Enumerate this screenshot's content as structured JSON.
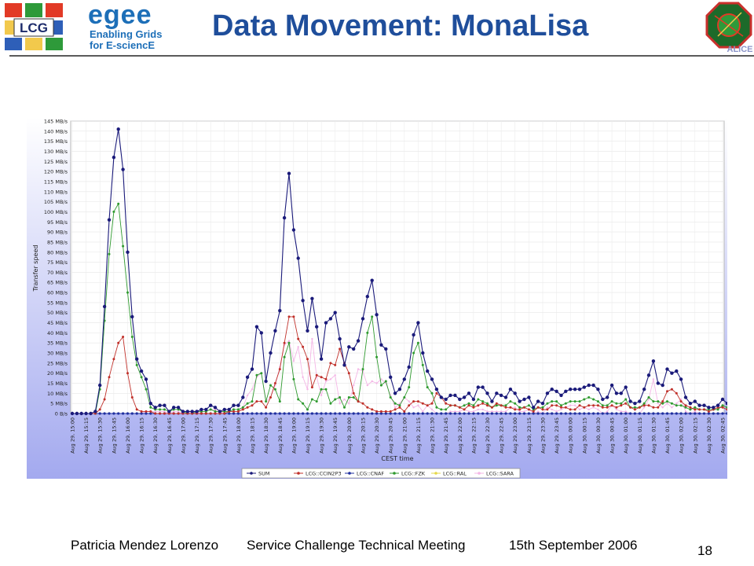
{
  "header": {
    "title": "Data Movement: MonaLisa",
    "lcg_logo_text": "LCG",
    "egee_logo_text": "egee",
    "egee_tagline_1": "Enabling Grids",
    "egee_tagline_2": "for E-sciencE",
    "alice_logo_text": "ALICE"
  },
  "footer": {
    "author": "Patricia Mendez Lorenzo",
    "event": "Service Challenge Technical Meeting",
    "date": "15th September 2006",
    "page": "18"
  },
  "colors": {
    "title": "#1f4e9b",
    "chart_top": "#ffffff",
    "chart_bottom": "#a3a9ef",
    "SUM": "#1a1a7a",
    "LCG::CCIN2P3": "#c0302a",
    "LCG::CNAF": "#1f2f9f",
    "LCG::FZK": "#2f9a2f",
    "LCG::RAL": "#e6d84a",
    "LCG::SARA": "#f4b6e6"
  },
  "chart_data": {
    "type": "line",
    "ylabel": "Transfer speed",
    "xlabel": "CEST time",
    "ylim": [
      0,
      145
    ],
    "y_unit": "MB/s",
    "y_ticks": [
      "0 B/s",
      "5 MB/s",
      "10 MB/s",
      "15 MB/s",
      "20 MB/s",
      "25 MB/s",
      "30 MB/s",
      "35 MB/s",
      "40 MB/s",
      "45 MB/s",
      "50 MB/s",
      "55 MB/s",
      "60 MB/s",
      "65 MB/s",
      "70 MB/s",
      "75 MB/s",
      "80 MB/s",
      "85 MB/s",
      "90 MB/s",
      "95 MB/s",
      "100 MB/s",
      "105 MB/s",
      "110 MB/s",
      "115 MB/s",
      "120 MB/s",
      "125 MB/s",
      "130 MB/s",
      "135 MB/s",
      "140 MB/s",
      "145 MB/s"
    ],
    "x_ticks": [
      "Aug 29, 15:00",
      "Aug 29, 15:15",
      "Aug 29, 15:30",
      "Aug 29, 15:45",
      "Aug 29, 16:00",
      "Aug 29, 16:15",
      "Aug 29, 16:30",
      "Aug 29, 16:45",
      "Aug 29, 17:00",
      "Aug 29, 17:15",
      "Aug 29, 17:30",
      "Aug 29, 17:45",
      "Aug 29, 18:00",
      "Aug 29, 18:15",
      "Aug 29, 18:30",
      "Aug 29, 18:45",
      "Aug 29, 19:00",
      "Aug 29, 19:15",
      "Aug 29, 19:30",
      "Aug 29, 19:45",
      "Aug 29, 20:00",
      "Aug 29, 20:15",
      "Aug 29, 20:30",
      "Aug 29, 20:45",
      "Aug 29, 21:00",
      "Aug 29, 21:15",
      "Aug 29, 21:30",
      "Aug 29, 21:45",
      "Aug 29, 22:00",
      "Aug 29, 22:15",
      "Aug 29, 22:30",
      "Aug 29, 22:45",
      "Aug 29, 23:00",
      "Aug 29, 23:15",
      "Aug 29, 23:30",
      "Aug 29, 23:45",
      "Aug 30, 00:00",
      "Aug 30, 00:15",
      "Aug 30, 00:30",
      "Aug 30, 00:45",
      "Aug 30, 01:00",
      "Aug 30, 01:15",
      "Aug 30, 01:30",
      "Aug 30, 01:45",
      "Aug 30, 02:00",
      "Aug 30, 02:15",
      "Aug 30, 02:30",
      "Aug 30, 02:45"
    ],
    "legend": [
      "SUM",
      "LCG::CCIN2P3",
      "LCG::CNAF",
      "LCG::FZK",
      "LCG::RAL",
      "LCG::SARA"
    ],
    "legend_position": "bottom",
    "grid": true,
    "points_per_tick": 3,
    "series": [
      {
        "name": "SUM",
        "values": [
          0,
          0,
          0,
          0,
          0,
          1,
          14,
          53,
          96,
          127,
          141,
          121,
          80,
          48,
          27,
          21,
          17,
          5,
          3,
          4,
          4,
          1,
          3,
          3,
          1,
          1,
          1,
          1,
          2,
          2,
          4,
          3,
          1,
          2,
          2,
          4,
          4,
          8,
          18,
          22,
          43,
          40,
          16,
          30,
          41,
          51,
          97,
          119,
          91,
          77,
          56,
          41,
          57,
          43,
          27,
          45,
          47,
          50,
          37,
          24,
          33,
          32,
          36,
          47,
          58,
          66,
          49,
          34,
          32,
          18,
          10,
          12,
          17,
          23,
          39,
          45,
          30,
          21,
          17,
          12,
          8,
          7,
          9,
          9,
          7,
          8,
          10,
          7,
          13,
          13,
          10,
          6,
          10,
          9,
          8,
          12,
          10,
          6,
          7,
          8,
          3,
          6,
          5,
          10,
          12,
          11,
          9,
          11,
          12,
          12,
          12,
          13,
          14,
          14,
          12,
          7,
          8,
          14,
          10,
          10,
          13,
          6,
          5,
          6,
          12,
          19,
          26,
          15,
          14,
          22,
          20,
          21,
          17,
          8,
          5,
          6,
          4,
          4,
          3,
          3,
          4,
          7,
          5,
          3,
          3,
          4,
          4,
          2,
          2,
          8,
          5,
          6,
          8,
          4,
          4,
          5,
          16,
          17,
          11
        ]
      },
      {
        "name": "LCG::CCIN2P3",
        "values": [
          0,
          0,
          0,
          0,
          0,
          0,
          2,
          7,
          18,
          27,
          35,
          38,
          20,
          8,
          2,
          1,
          1,
          1,
          0,
          0,
          0,
          0,
          0,
          0,
          0,
          0,
          0,
          0,
          0,
          0,
          0,
          0,
          0,
          0,
          1,
          1,
          1,
          2,
          3,
          4,
          6,
          6,
          3,
          8,
          15,
          22,
          35,
          48,
          48,
          37,
          33,
          27,
          13,
          19,
          18,
          17,
          25,
          24,
          32,
          25,
          20,
          10,
          6,
          5,
          3,
          2,
          1,
          1,
          1,
          1,
          2,
          3,
          1,
          4,
          6,
          6,
          5,
          4,
          5,
          10,
          8,
          5,
          4,
          4,
          3,
          2,
          4,
          3,
          4,
          5,
          4,
          3,
          5,
          4,
          3,
          3,
          2,
          2,
          3,
          2,
          1,
          3,
          2,
          2,
          4,
          4,
          3,
          3,
          2,
          2,
          4,
          3,
          4,
          4,
          4,
          3,
          3,
          4,
          3,
          4,
          5,
          3,
          2,
          3,
          4,
          4,
          3,
          3,
          6,
          11,
          12,
          10,
          6,
          4,
          3,
          2,
          2,
          2,
          1,
          2,
          3,
          3,
          2,
          2,
          2,
          3,
          2,
          1,
          1,
          2,
          3,
          3,
          3,
          2,
          2,
          2,
          5,
          6,
          4
        ]
      },
      {
        "name": "LCG::CNAF",
        "values": [
          0,
          0,
          0,
          0,
          0,
          0,
          0,
          0,
          0,
          0,
          0,
          0,
          0,
          0,
          0,
          0,
          0,
          0,
          0,
          0,
          0,
          0,
          0,
          0,
          0,
          0,
          0,
          0,
          0,
          0,
          0,
          0,
          0,
          0,
          0,
          0,
          0,
          0,
          0,
          0,
          0,
          0,
          0,
          0,
          0,
          0,
          0,
          0,
          0,
          0,
          0,
          0,
          0,
          0,
          0,
          0,
          0,
          0,
          0,
          0,
          0,
          0,
          0,
          0,
          0,
          0,
          0,
          0,
          0,
          0,
          0,
          0,
          0,
          0,
          0,
          0,
          0,
          0,
          0,
          0,
          0,
          0,
          0,
          0,
          0,
          0,
          0,
          0,
          0,
          0,
          0,
          0,
          0,
          0,
          0,
          0,
          0,
          0,
          0,
          0,
          0,
          0,
          0,
          0,
          0,
          0,
          0,
          0,
          0,
          0,
          0,
          0,
          0,
          0,
          0,
          0,
          0,
          0,
          0,
          0,
          0,
          0,
          0,
          0,
          0,
          0,
          0,
          0,
          0,
          0,
          0,
          0,
          0,
          0,
          0,
          0,
          0,
          0,
          0,
          0,
          0,
          0,
          0,
          0,
          0,
          0,
          0,
          0,
          0,
          0,
          0,
          0,
          0,
          0,
          0,
          0,
          0,
          0,
          0
        ]
      },
      {
        "name": "LCG::FZK",
        "values": [
          0,
          0,
          0,
          0,
          0,
          0,
          12,
          46,
          79,
          100,
          104,
          83,
          60,
          38,
          24,
          18,
          12,
          3,
          2,
          2,
          2,
          1,
          2,
          2,
          1,
          0,
          0,
          1,
          1,
          1,
          2,
          1,
          1,
          1,
          1,
          2,
          2,
          3,
          5,
          6,
          19,
          20,
          6,
          14,
          12,
          6,
          28,
          35,
          17,
          7,
          5,
          2,
          7,
          6,
          12,
          12,
          5,
          7,
          8,
          3,
          8,
          8,
          6,
          22,
          40,
          48,
          28,
          14,
          16,
          8,
          5,
          4,
          8,
          13,
          30,
          35,
          24,
          13,
          10,
          3,
          2,
          2,
          4,
          4,
          3,
          4,
          5,
          4,
          7,
          6,
          5,
          3,
          4,
          4,
          4,
          6,
          5,
          3,
          3,
          4,
          2,
          3,
          3,
          5,
          6,
          6,
          4,
          5,
          6,
          6,
          6,
          7,
          8,
          7,
          6,
          4,
          4,
          6,
          5,
          5,
          7,
          3,
          3,
          3,
          5,
          8,
          6,
          6,
          5,
          6,
          5,
          4,
          4,
          3,
          2,
          3,
          2,
          2,
          2,
          2,
          2,
          4,
          3,
          2,
          2,
          2,
          2,
          1,
          1,
          6,
          7,
          5,
          4,
          2,
          2,
          3,
          6,
          7,
          5
        ]
      },
      {
        "name": "LCG::RAL",
        "values": [
          0,
          0,
          0,
          0,
          0,
          0,
          0,
          0,
          0,
          0,
          0,
          0,
          0,
          0,
          0,
          0,
          0,
          0,
          0,
          0,
          0,
          0,
          0,
          0,
          0,
          0,
          0,
          0,
          0,
          0,
          0,
          0,
          0,
          0,
          0,
          0,
          0,
          0,
          0,
          0,
          0,
          0,
          0,
          0,
          0,
          0,
          0,
          0,
          0,
          0,
          0,
          0,
          0,
          0,
          0,
          0,
          0,
          0,
          0,
          0,
          0,
          0,
          0,
          0,
          0,
          0,
          0,
          0,
          0,
          0,
          0,
          0,
          0,
          0,
          0,
          0,
          0,
          0,
          0,
          0,
          0,
          0,
          0,
          0,
          0,
          0,
          0,
          0,
          0,
          0,
          0,
          0,
          0,
          0,
          0,
          0,
          0,
          0,
          0,
          0,
          0,
          0,
          0,
          0,
          0,
          0,
          0,
          0,
          0,
          0,
          0,
          0,
          0,
          0,
          0,
          0,
          0,
          0,
          0,
          0,
          0,
          0,
          0,
          0,
          0,
          0,
          0,
          0,
          0,
          0,
          0,
          0,
          0,
          0,
          0,
          0,
          0,
          0,
          0,
          0,
          0,
          0,
          0,
          0,
          0,
          0,
          0,
          0,
          0,
          0,
          0,
          0,
          0,
          0,
          0,
          0,
          0,
          0,
          0
        ]
      },
      {
        "name": "LCG::SARA",
        "values": [
          0,
          0,
          0,
          0,
          0,
          0,
          0,
          0,
          0,
          0,
          0,
          0,
          0,
          0,
          0,
          0,
          1,
          1,
          1,
          1,
          1,
          0,
          1,
          1,
          0,
          0,
          1,
          0,
          1,
          1,
          2,
          2,
          0,
          1,
          1,
          1,
          1,
          3,
          9,
          12,
          18,
          20,
          6,
          8,
          14,
          23,
          34,
          36,
          26,
          33,
          18,
          12,
          37,
          18,
          9,
          16,
          17,
          19,
          5,
          7,
          5,
          14,
          22,
          21,
          14,
          16,
          15,
          17,
          15,
          9,
          3,
          5,
          8,
          6,
          3,
          4,
          1,
          4,
          2,
          0,
          0,
          0,
          1,
          1,
          1,
          2,
          1,
          1,
          2,
          2,
          1,
          1,
          1,
          1,
          1,
          3,
          3,
          1,
          1,
          2,
          0,
          1,
          0,
          3,
          2,
          1,
          2,
          3,
          4,
          4,
          2,
          3,
          2,
          3,
          2,
          0,
          1,
          4,
          2,
          1,
          1,
          0,
          0,
          0,
          3,
          7,
          17,
          5,
          3,
          5,
          3,
          5,
          7,
          1,
          0,
          1,
          0,
          0,
          0,
          0,
          0,
          0,
          0,
          0,
          0,
          0,
          0,
          0,
          0,
          0,
          0,
          1,
          1,
          0,
          0,
          0,
          5,
          4,
          2
        ]
      }
    ]
  }
}
